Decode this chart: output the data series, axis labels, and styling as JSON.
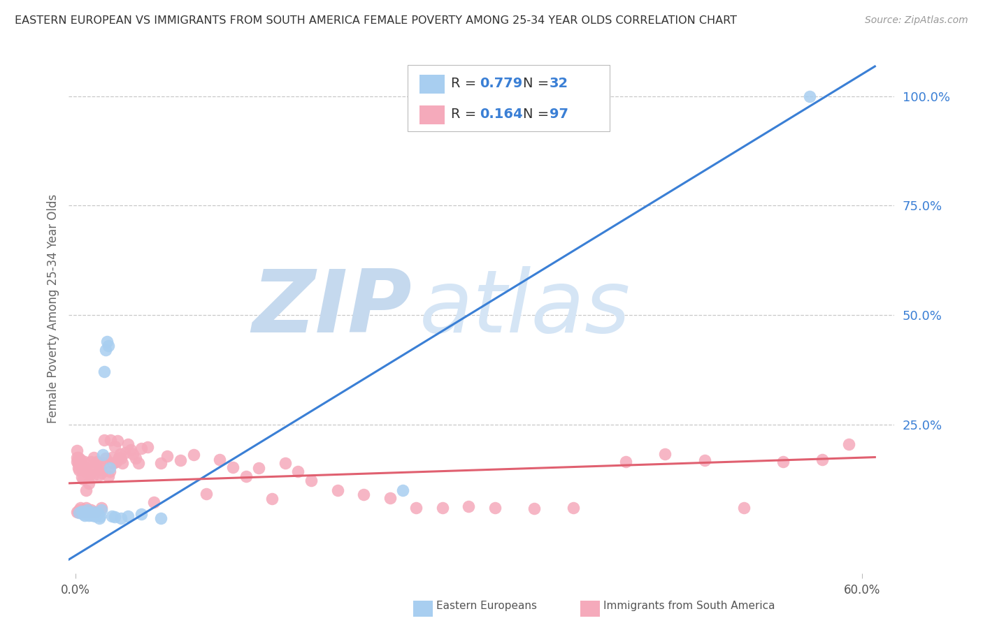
{
  "title": "EASTERN EUROPEAN VS IMMIGRANTS FROM SOUTH AMERICA FEMALE POVERTY AMONG 25-34 YEAR OLDS CORRELATION CHART",
  "source": "Source: ZipAtlas.com",
  "ylabel": "Female Poverty Among 25-34 Year Olds",
  "right_ytick_labels": [
    "100.0%",
    "75.0%",
    "50.0%",
    "25.0%"
  ],
  "right_ytick_vals": [
    1.0,
    0.75,
    0.5,
    0.25
  ],
  "watermark_zip": "ZIP",
  "watermark_atlas": "atlas",
  "blue_R": "0.779",
  "blue_N": "32",
  "pink_R": "0.164",
  "pink_N": "97",
  "blue_label": "Eastern Europeans",
  "pink_label": "Immigrants from South America",
  "blue_color": "#a8cef0",
  "pink_color": "#f5aabb",
  "blue_line_color": "#3a7fd5",
  "pink_line_color": "#e06070",
  "label_color": "#333333",
  "value_color": "#3a7fd5",
  "background_color": "#ffffff",
  "grid_color": "#c8c8c8",
  "title_color": "#333333",
  "right_axis_color": "#3a7fd5",
  "watermark_zip_color": "#c5d9ee",
  "watermark_atlas_color": "#d5e5f5",
  "xlim": [
    -0.005,
    0.625
  ],
  "ylim": [
    -0.09,
    1.12
  ],
  "blue_scatter_x": [
    0.003,
    0.005,
    0.006,
    0.007,
    0.008,
    0.009,
    0.01,
    0.01,
    0.011,
    0.012,
    0.013,
    0.014,
    0.015,
    0.016,
    0.017,
    0.018,
    0.019,
    0.02,
    0.021,
    0.022,
    0.023,
    0.024,
    0.025,
    0.026,
    0.028,
    0.03,
    0.035,
    0.04,
    0.05,
    0.065,
    0.25,
    0.56
  ],
  "blue_scatter_y": [
    0.048,
    0.052,
    0.045,
    0.042,
    0.048,
    0.055,
    0.048,
    0.042,
    0.048,
    0.045,
    0.042,
    0.05,
    0.04,
    0.045,
    0.048,
    0.035,
    0.04,
    0.055,
    0.18,
    0.37,
    0.42,
    0.44,
    0.43,
    0.15,
    0.04,
    0.038,
    0.035,
    0.04,
    0.045,
    0.035,
    0.1,
    1.0
  ],
  "pink_scatter_x": [
    0.001,
    0.001,
    0.001,
    0.002,
    0.002,
    0.002,
    0.003,
    0.003,
    0.004,
    0.004,
    0.005,
    0.005,
    0.006,
    0.006,
    0.007,
    0.007,
    0.008,
    0.008,
    0.009,
    0.01,
    0.01,
    0.011,
    0.012,
    0.013,
    0.014,
    0.015,
    0.016,
    0.017,
    0.018,
    0.019,
    0.02,
    0.021,
    0.022,
    0.023,
    0.025,
    0.026,
    0.027,
    0.028,
    0.029,
    0.03,
    0.031,
    0.032,
    0.033,
    0.034,
    0.035,
    0.036,
    0.038,
    0.04,
    0.042,
    0.044,
    0.046,
    0.048,
    0.05,
    0.055,
    0.06,
    0.065,
    0.07,
    0.08,
    0.09,
    0.1,
    0.11,
    0.12,
    0.13,
    0.14,
    0.15,
    0.16,
    0.17,
    0.18,
    0.2,
    0.22,
    0.24,
    0.26,
    0.28,
    0.3,
    0.32,
    0.35,
    0.38,
    0.42,
    0.45,
    0.48,
    0.51,
    0.54,
    0.57,
    0.59,
    0.001,
    0.002,
    0.003,
    0.004,
    0.005,
    0.006,
    0.007,
    0.008,
    0.009,
    0.01,
    0.012,
    0.015,
    0.02
  ],
  "pink_scatter_y": [
    0.165,
    0.175,
    0.19,
    0.15,
    0.16,
    0.175,
    0.145,
    0.16,
    0.155,
    0.17,
    0.13,
    0.15,
    0.125,
    0.145,
    0.15,
    0.165,
    0.1,
    0.15,
    0.14,
    0.115,
    0.14,
    0.135,
    0.165,
    0.13,
    0.175,
    0.155,
    0.165,
    0.145,
    0.135,
    0.15,
    0.14,
    0.162,
    0.215,
    0.172,
    0.132,
    0.142,
    0.215,
    0.175,
    0.162,
    0.2,
    0.165,
    0.212,
    0.175,
    0.182,
    0.172,
    0.162,
    0.185,
    0.205,
    0.192,
    0.182,
    0.172,
    0.162,
    0.195,
    0.198,
    0.072,
    0.162,
    0.178,
    0.168,
    0.18,
    0.092,
    0.17,
    0.152,
    0.132,
    0.15,
    0.08,
    0.162,
    0.142,
    0.122,
    0.1,
    0.09,
    0.082,
    0.06,
    0.06,
    0.062,
    0.06,
    0.058,
    0.06,
    0.165,
    0.182,
    0.168,
    0.06,
    0.165,
    0.17,
    0.205,
    0.05,
    0.05,
    0.055,
    0.06,
    0.05,
    0.055,
    0.05,
    0.06,
    0.055,
    0.05,
    0.055,
    0.05,
    0.06
  ],
  "blue_line_x": [
    -0.01,
    0.61
  ],
  "blue_line_y": [
    -0.068,
    1.068
  ],
  "pink_line_x": [
    -0.01,
    0.61
  ],
  "pink_line_y": [
    0.115,
    0.175
  ]
}
